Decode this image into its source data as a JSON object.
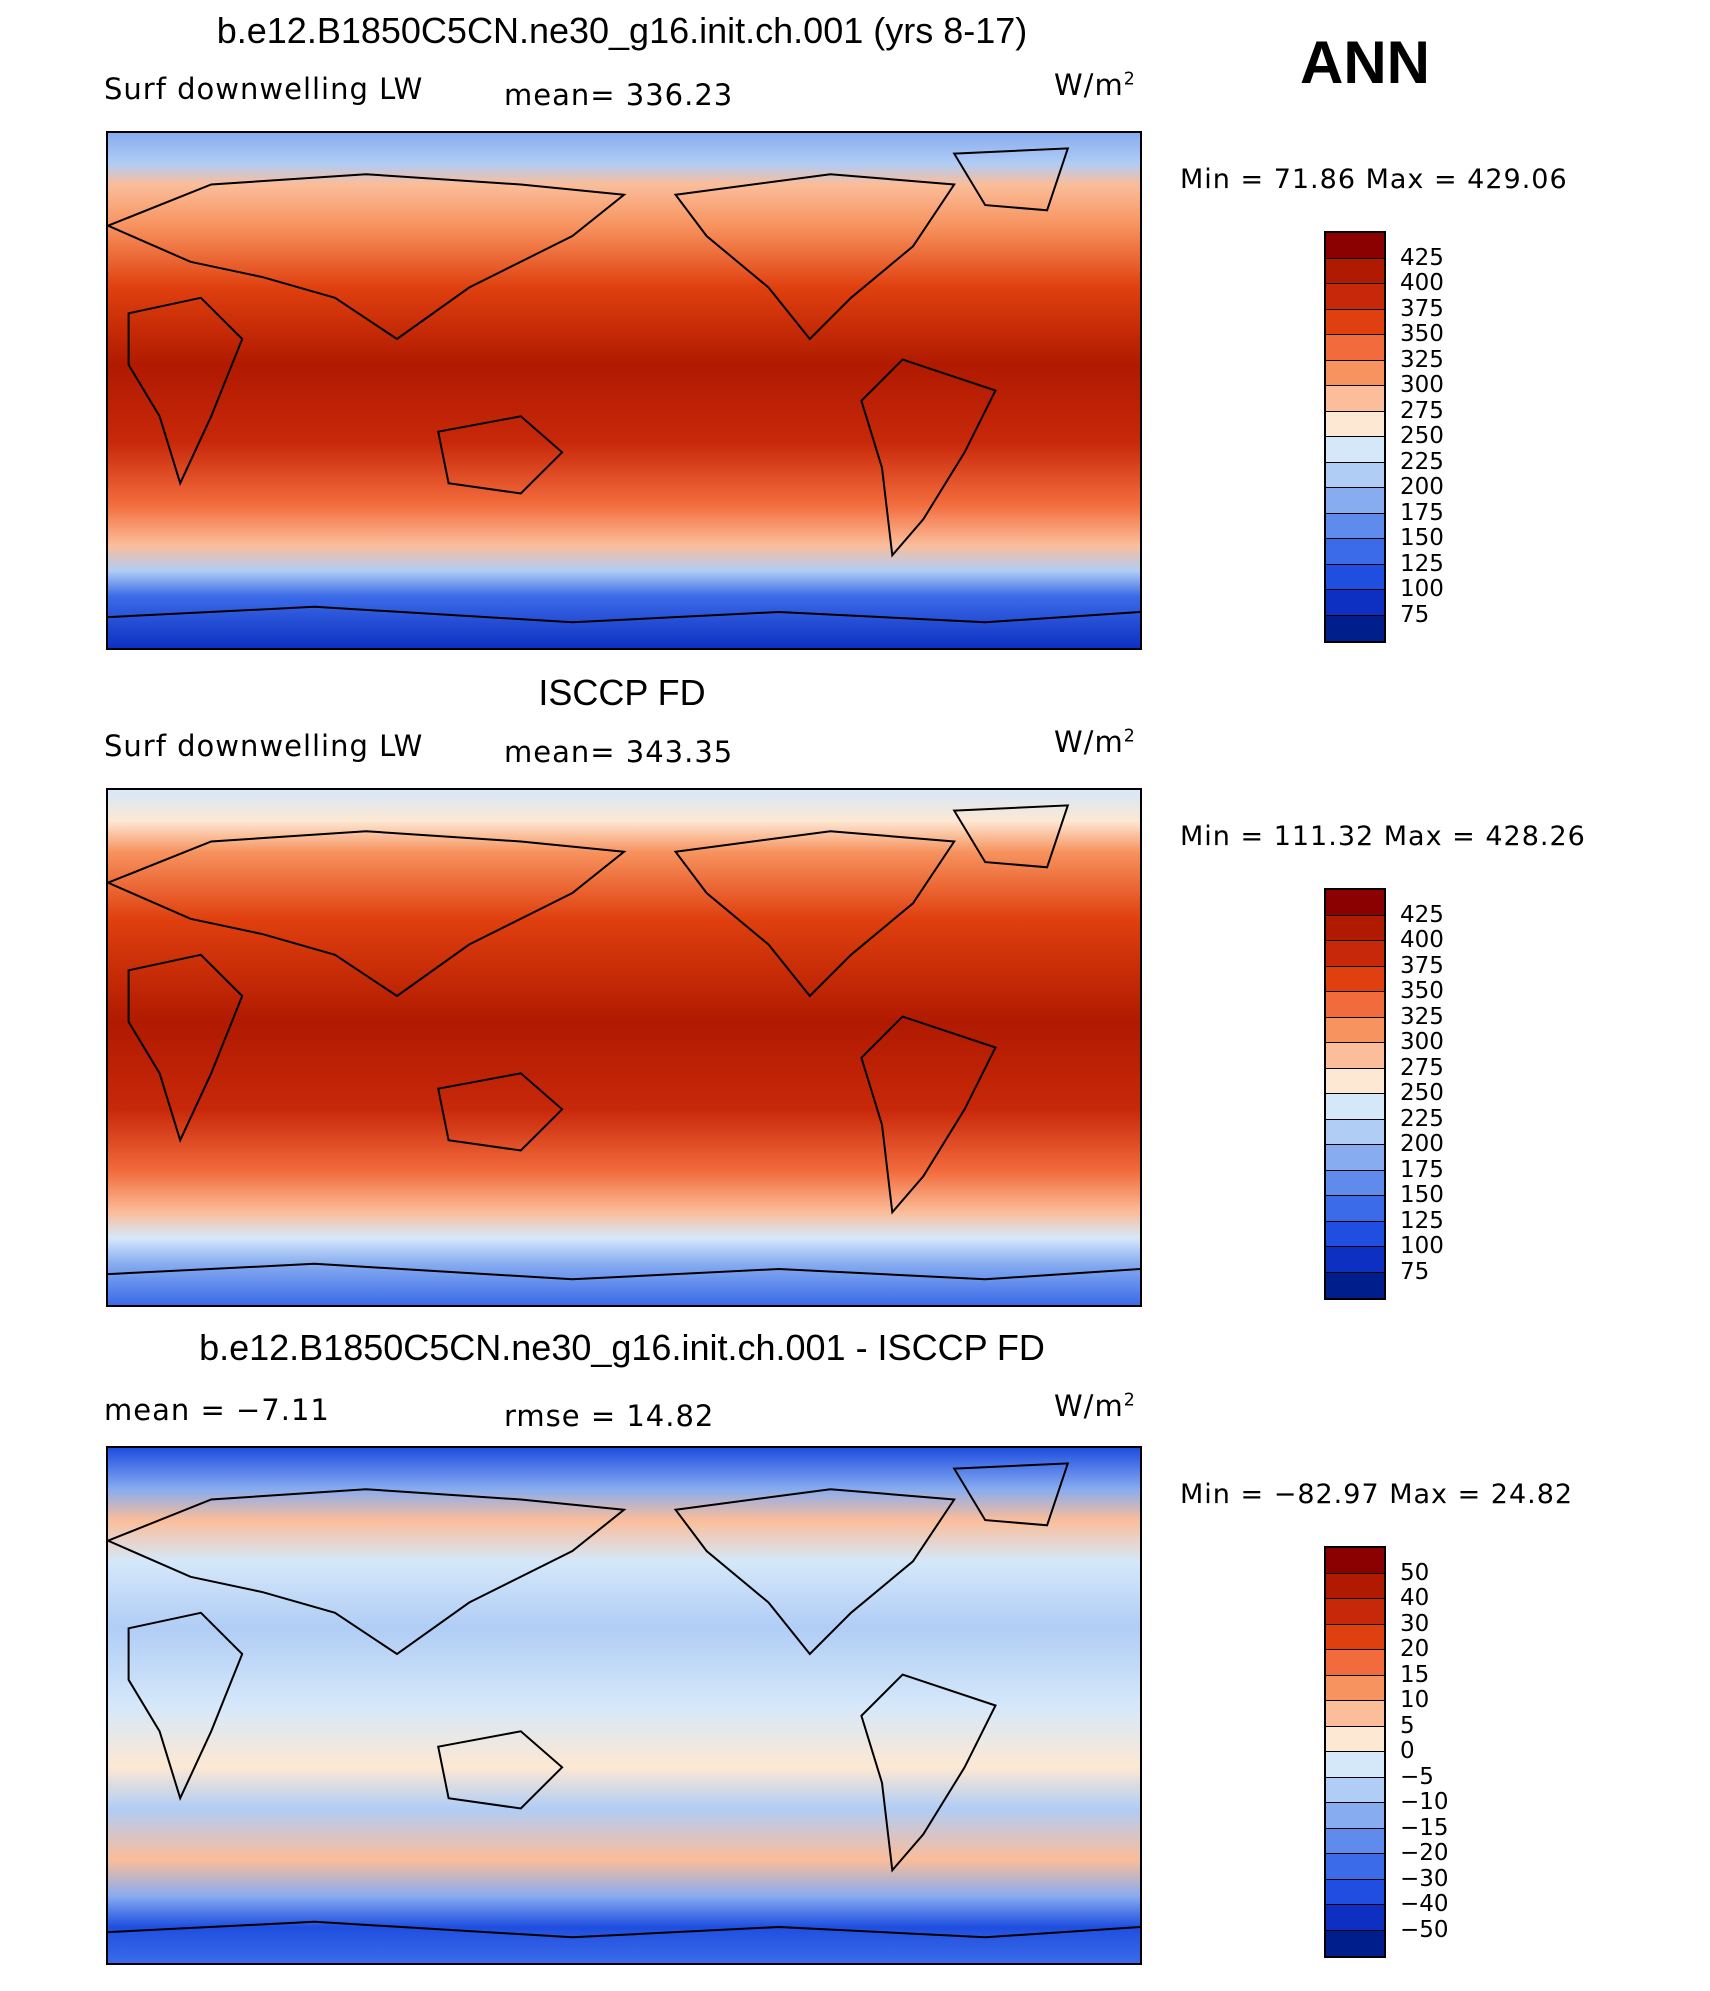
{
  "season": "ANN",
  "panels": [
    {
      "title": "b.e12.B1850C5CN.ne30_g16.init.ch.001 (yrs 8-17)",
      "left_label": "Surf  downwelling  LW",
      "center_label": "mean=  336.23",
      "units": "W/m",
      "units_exp": "2",
      "minmax": "Min  =    71.86  Max  =  429.06",
      "levels": [
        "425",
        "400",
        "375",
        "350",
        "325",
        "300",
        "275",
        "250",
        "225",
        "200",
        "175",
        "150",
        "125",
        "100",
        "75"
      ],
      "colors": [
        "#8b0000",
        "#b01a00",
        "#c8280a",
        "#e0400f",
        "#f26b3c",
        "#f7935f",
        "#fbbd9a",
        "#fde8d3",
        "#d5e8fa",
        "#b0cdf5",
        "#87acf0",
        "#5f8cec",
        "#3b6be8",
        "#1f4ee0",
        "#0d30c2",
        "#001e8c"
      ]
    },
    {
      "title": "ISCCP FD",
      "left_label": "Surf  downwelling  LW",
      "center_label": "mean=  343.35",
      "units": "W/m",
      "units_exp": "2",
      "minmax": "Min  =  111.32  Max  =  428.26",
      "levels": [
        "425",
        "400",
        "375",
        "350",
        "325",
        "300",
        "275",
        "250",
        "225",
        "200",
        "175",
        "150",
        "125",
        "100",
        "75"
      ],
      "colors": [
        "#8b0000",
        "#b01a00",
        "#c8280a",
        "#e0400f",
        "#f26b3c",
        "#f7935f",
        "#fbbd9a",
        "#fde8d3",
        "#d5e8fa",
        "#b0cdf5",
        "#87acf0",
        "#5f8cec",
        "#3b6be8",
        "#1f4ee0",
        "#0d30c2",
        "#001e8c"
      ]
    },
    {
      "title": "b.e12.B1850C5CN.ne30_g16.init.ch.001 - ISCCP FD",
      "left_label": "mean  =    −7.11",
      "center_label": "rmse  =    14.82",
      "units": "W/m",
      "units_exp": "2",
      "minmax": "Min  =  −82.97  Max  =    24.82",
      "levels": [
        "50",
        "40",
        "30",
        "20",
        "15",
        "10",
        "5",
        "0",
        "−5",
        "−10",
        "−15",
        "−20",
        "−30",
        "−40",
        "−50"
      ],
      "colors": [
        "#8b0000",
        "#b01a00",
        "#c8280a",
        "#e0400f",
        "#f26b3c",
        "#f7935f",
        "#fbbd9a",
        "#fde8d3",
        "#d5e8fa",
        "#b0cdf5",
        "#87acf0",
        "#5f8cec",
        "#3b6be8",
        "#1f4ee0",
        "#0d30c2",
        "#001e8c"
      ]
    }
  ]
}
